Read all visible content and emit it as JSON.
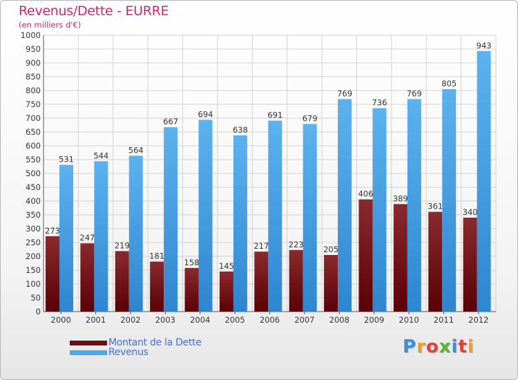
{
  "title": "Revenus/Dette - EURRE",
  "subtitle": "(en milliers d'€)",
  "logo": {
    "text": "Proxiti",
    "letter_colors": [
      "#3a8de0",
      "#f0a020",
      "#e0403a",
      "#5ab030",
      "#3a8de0",
      "#e0403a",
      "#f0a020"
    ]
  },
  "legend": [
    {
      "label": "Montant de la Dette",
      "color": "#6b0d12"
    },
    {
      "label": "Revenus",
      "color": "#4fa6ea"
    }
  ],
  "chart_data": {
    "type": "bar",
    "title": "Revenus/Dette - EURRE",
    "ylabel": "(en milliers d'€)",
    "xlabel": "",
    "ylim": [
      0,
      1000
    ],
    "ytick_step": 50,
    "grid": true,
    "legend_position": "bottom-left",
    "categories": [
      "2000",
      "2001",
      "2002",
      "2003",
      "2004",
      "2005",
      "2006",
      "2007",
      "2008",
      "2009",
      "2010",
      "2011",
      "2012"
    ],
    "series": [
      {
        "name": "Montant de la Dette",
        "color": "#6b0d12",
        "values": [
          273,
          247,
          219,
          181,
          158,
          145,
          217,
          223,
          205,
          406,
          389,
          361,
          340
        ]
      },
      {
        "name": "Revenus",
        "color": "#4fa6ea",
        "values": [
          531,
          544,
          564,
          667,
          694,
          638,
          691,
          679,
          769,
          736,
          769,
          805,
          943
        ]
      }
    ]
  }
}
